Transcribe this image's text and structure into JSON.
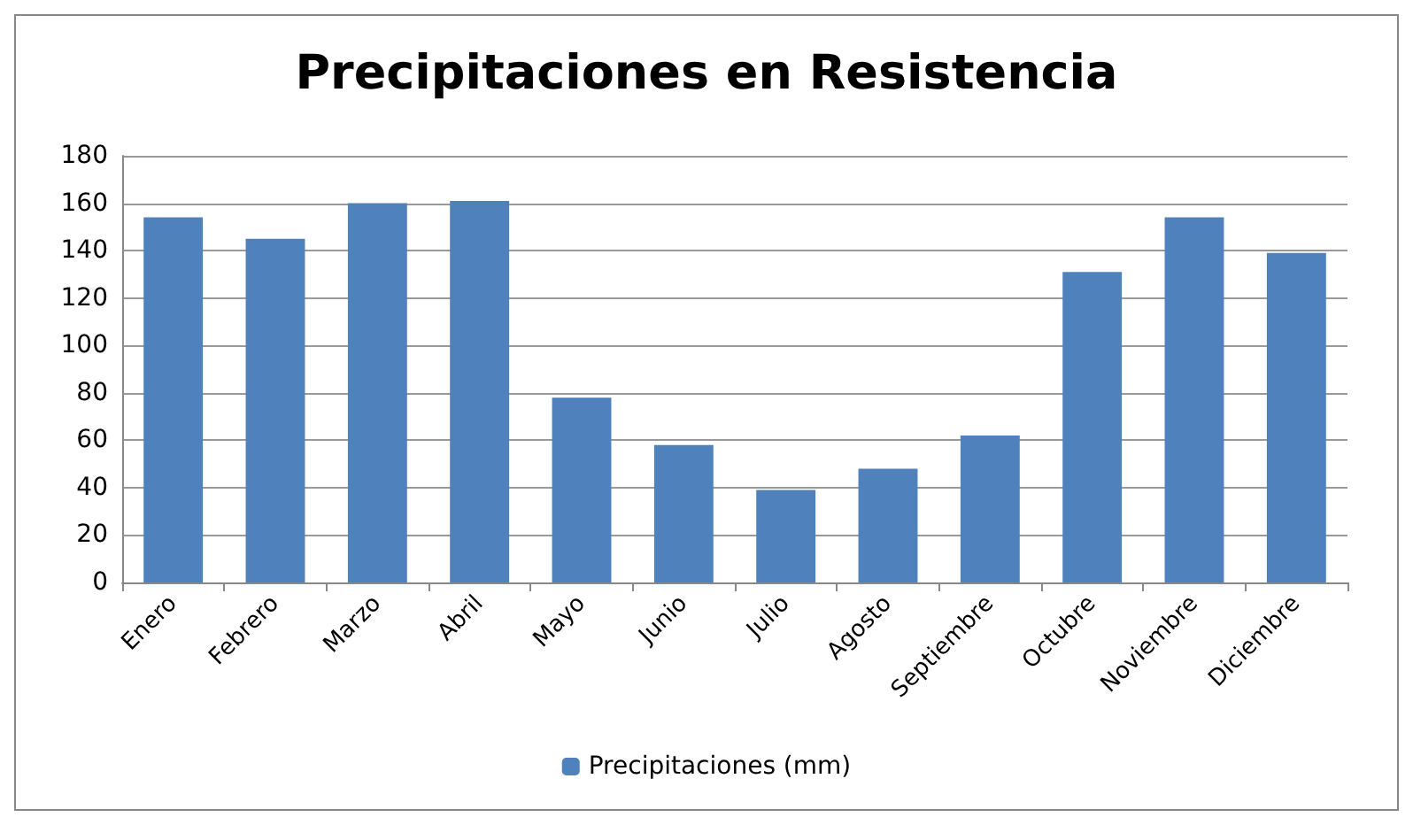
{
  "chart_data": {
    "type": "bar",
    "title": "Precipitaciones en Resistencia",
    "categories": [
      "Enero",
      "Febrero",
      "Marzo",
      "Abril",
      "Mayo",
      "Junio",
      "Julio",
      "Agosto",
      "Septiembre",
      "Octubre",
      "Noviembre",
      "Diciembre"
    ],
    "series": [
      {
        "name": "Precipitaciones (mm)",
        "color": "#4f81bd",
        "values": [
          154,
          145,
          160,
          161,
          78,
          58,
          39,
          48,
          62,
          131,
          154,
          139
        ]
      }
    ],
    "ylim": [
      0,
      180
    ],
    "yticks": [
      0,
      20,
      40,
      60,
      80,
      100,
      120,
      140,
      160,
      180
    ],
    "grid": "y",
    "legend": "bottom"
  }
}
